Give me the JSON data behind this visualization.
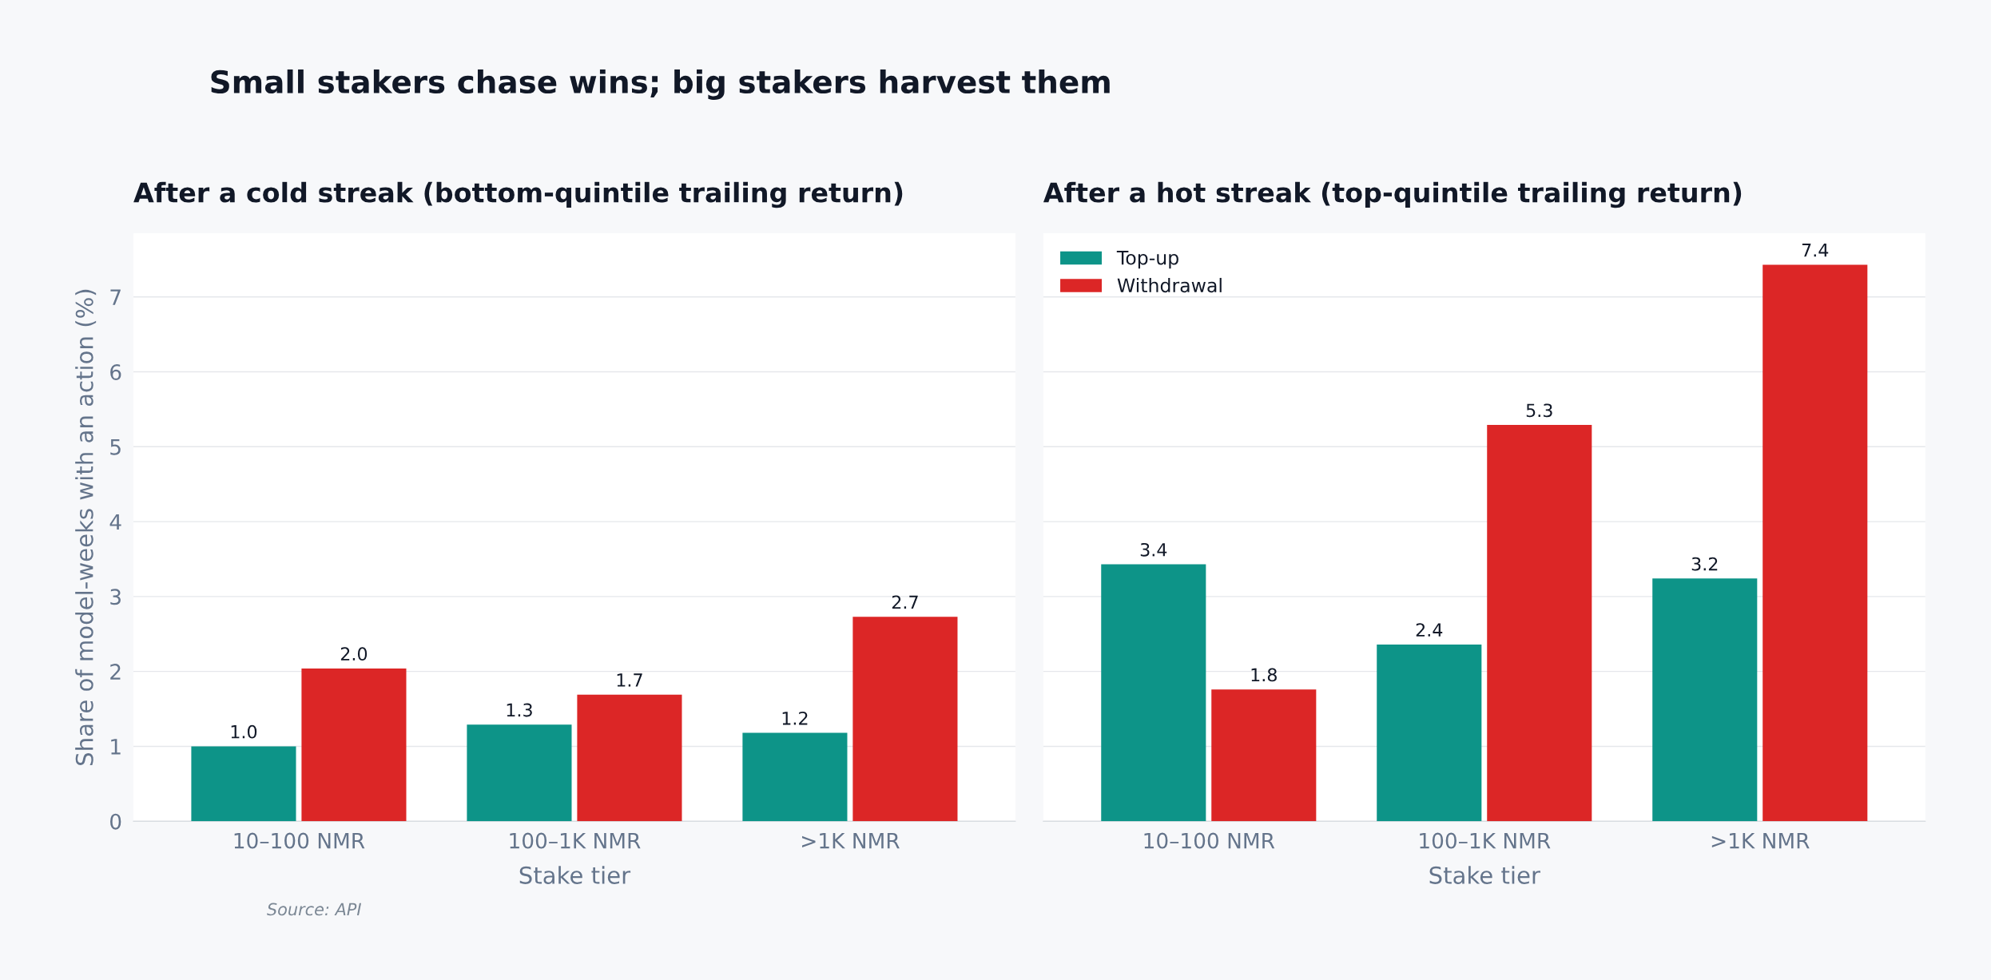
{
  "chart_data": [
    {
      "type": "bar",
      "title": "Small stakers chase wins; big stakers harvest them",
      "subtitle": "After a cold streak (bottom-quintile trailing return)",
      "xlabel": "Stake tier",
      "ylabel": "Share of model-weeks with an action (%)",
      "categories": [
        "10–100 NMR",
        "100–1K NMR",
        ">1K NMR"
      ],
      "series": [
        {
          "color": "#0d9488",
          "values": [
            1.0,
            1.29,
            1.18
          ],
          "value_labels": [
            "1.0",
            "1.3",
            "1.2"
          ]
        },
        {
          "color": "#dc2626",
          "values": [
            2.04,
            1.69,
            2.73
          ],
          "value_labels": [
            "2.0",
            "1.7",
            "2.7"
          ]
        }
      ],
      "ylim": [
        0,
        7.85
      ],
      "yticks": [
        0,
        1,
        2,
        3,
        4,
        5,
        6,
        7
      ],
      "grid": "y",
      "annotations": [
        "Source: API"
      ]
    },
    {
      "type": "bar",
      "title": "After a hot streak (top-quintile trailing return)",
      "xlabel": "Stake tier",
      "categories": [
        "10–100 NMR",
        "100–1K NMR",
        ">1K NMR"
      ],
      "series": [
        {
          "name": "Top-up",
          "color": "#0d9488",
          "values": [
            3.43,
            2.36,
            3.24
          ],
          "value_labels": [
            "3.4",
            "2.4",
            "3.2"
          ]
        },
        {
          "name": "Withdrawal",
          "color": "#dc2626",
          "values": [
            1.76,
            5.29,
            7.43
          ],
          "value_labels": [
            "1.8",
            "5.3",
            "7.4"
          ]
        }
      ],
      "ylim": [
        0,
        7.85
      ],
      "yticks": [
        0,
        1,
        2,
        3,
        4,
        5,
        6,
        7
      ],
      "grid": "y",
      "legend": "top left",
      "tick_labels": "x"
    }
  ]
}
